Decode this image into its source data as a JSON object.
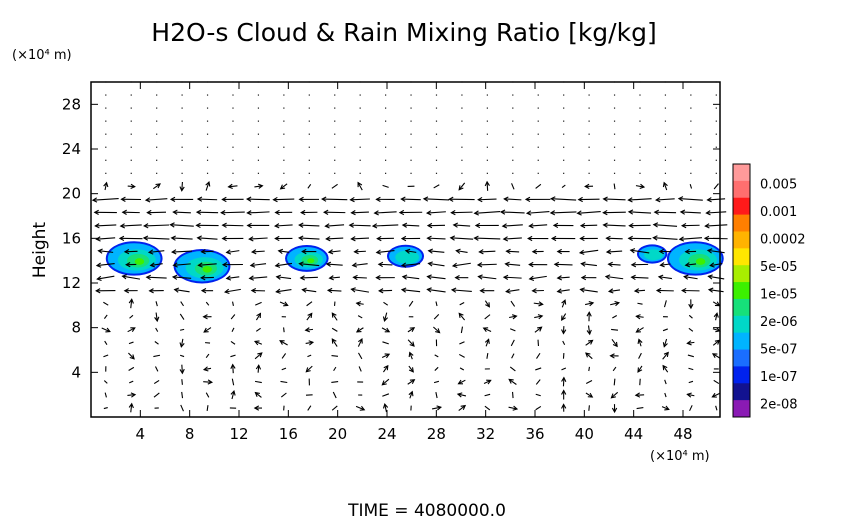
{
  "chart_data": {
    "type": "heatmap",
    "title": "H2O-s Cloud & Rain Mixing Ratio [kg/kg]",
    "ylabel": "Height",
    "y_unit": "(×10⁴ m)",
    "x_unit": "(×10⁴ m)",
    "xlim": [
      0,
      51
    ],
    "ylim": [
      0,
      30
    ],
    "x_ticks": [
      4,
      8,
      12,
      16,
      20,
      24,
      28,
      32,
      36,
      40,
      44,
      48
    ],
    "y_ticks": [
      4,
      8,
      12,
      16,
      20,
      24,
      28
    ],
    "grid": false,
    "legend_placement": "right",
    "colorbar": {
      "labels": [
        "0.005",
        "0.001",
        "0.0002",
        "5e-05",
        "1e-05",
        "2e-06",
        "5e-07",
        "1e-07",
        "2e-08"
      ],
      "colors": [
        "#ff9a9a",
        "#ff6f6f",
        "#ff1a1a",
        "#ff7f00",
        "#ffb300",
        "#ffe600",
        "#a8ee00",
        "#3cf000",
        "#16e07a",
        "#00d8c8",
        "#00b4ff",
        "#1a6eff",
        "#0022ee",
        "#121290",
        "#8a1ab4"
      ]
    },
    "cloud_patches": [
      {
        "x": 3.5,
        "y": 14.2,
        "level": 8
      },
      {
        "x": 9.0,
        "y": 13.5,
        "level": 8
      },
      {
        "x": 17.5,
        "y": 14.2,
        "level": 6
      },
      {
        "x": 25.5,
        "y": 14.4,
        "level": 5
      },
      {
        "x": 45.5,
        "y": 14.6,
        "level": 4
      },
      {
        "x": 49.0,
        "y": 14.2,
        "level": 8
      }
    ],
    "footer": "TIME = 4080000.0"
  }
}
